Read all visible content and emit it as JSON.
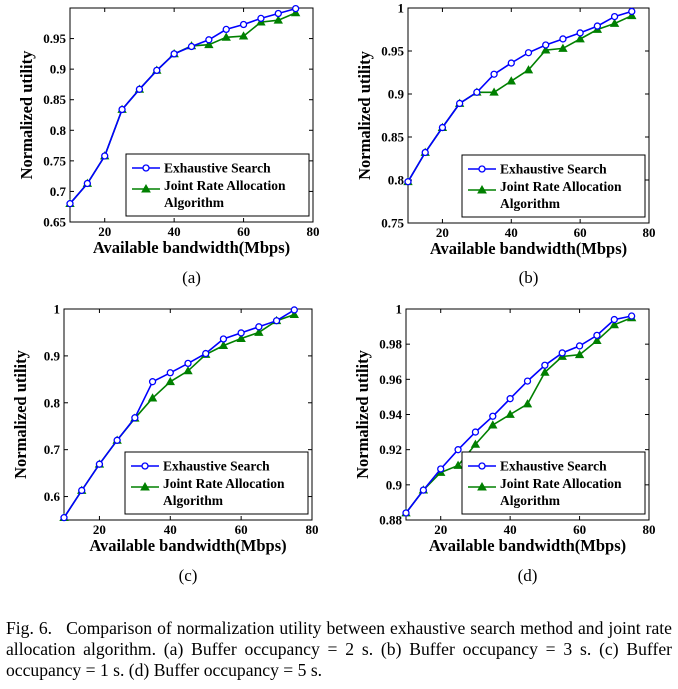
{
  "caption": {
    "label": "Fig. 6.",
    "text": "Comparison of normalization utility between exhaustive search method and joint rate allocation algorithm. (a) Buffer occupancy = 2 s. (b) Buffer occupancy = 3 s. (c) Buffer occupancy = 1 s. (d) Buffer occupancy = 5 s."
  },
  "colors": {
    "exhaustive": "#0000ff",
    "joint": "#008000",
    "axis": "#000000"
  },
  "chart_data": [
    {
      "panel": "(a)",
      "type": "line",
      "xlabel": "Available bandwidth(Mbps)",
      "ylabel": "Normalized utility",
      "xlim": [
        10,
        80
      ],
      "ylim": [
        0.65,
        1.0
      ],
      "xticks": [
        20,
        40,
        60,
        80
      ],
      "yticks": [
        0.65,
        0.7,
        0.75,
        0.8,
        0.85,
        0.9,
        0.95
      ],
      "ytick_labels": [
        "0.65",
        "0.7",
        "0.75",
        "0.8",
        "0.85",
        "0.9",
        "0.95"
      ],
      "legend_position": "lower-right",
      "x": [
        10,
        15,
        20,
        25,
        30,
        35,
        40,
        45,
        50,
        55,
        60,
        65,
        70,
        75
      ],
      "series": [
        {
          "name": "Exhaustive Search",
          "marker": "circle",
          "values": [
            0.68,
            0.713,
            0.758,
            0.834,
            0.867,
            0.898,
            0.925,
            0.937,
            0.948,
            0.965,
            0.973,
            0.983,
            0.991,
            0.999
          ]
        },
        {
          "name": "Joint Rate Allocation Algorithm",
          "marker": "triangle",
          "values": [
            0.68,
            0.713,
            0.758,
            0.834,
            0.867,
            0.898,
            0.925,
            0.938,
            0.94,
            0.952,
            0.954,
            0.977,
            0.98,
            0.992
          ]
        }
      ]
    },
    {
      "panel": "(b)",
      "type": "line",
      "xlabel": "Available bandwidth(Mbps)",
      "ylabel": "Normalized utility",
      "xlim": [
        10,
        80
      ],
      "ylim": [
        0.75,
        1.0
      ],
      "xticks": [
        20,
        40,
        60,
        80
      ],
      "yticks": [
        0.75,
        0.8,
        0.85,
        0.9,
        0.95,
        1.0
      ],
      "ytick_labels": [
        "0.75",
        "0.8",
        "0.85",
        "0.9",
        "0.95",
        "1"
      ],
      "legend_position": "lower-right",
      "x": [
        10,
        15,
        20,
        25,
        30,
        35,
        40,
        45,
        50,
        55,
        60,
        65,
        70,
        75
      ],
      "series": [
        {
          "name": "Exhaustive Search",
          "marker": "circle",
          "values": [
            0.798,
            0.832,
            0.861,
            0.889,
            0.902,
            0.923,
            0.936,
            0.948,
            0.957,
            0.964,
            0.971,
            0.979,
            0.99,
            0.996
          ]
        },
        {
          "name": "Joint Rate Allocation Algorithm",
          "marker": "triangle",
          "values": [
            0.798,
            0.832,
            0.861,
            0.889,
            0.902,
            0.902,
            0.915,
            0.928,
            0.951,
            0.953,
            0.964,
            0.975,
            0.982,
            0.991
          ]
        }
      ]
    },
    {
      "panel": "(c)",
      "type": "line",
      "xlabel": "Available bandwidth(Mbps)",
      "ylabel": "Normalized utility",
      "xlim": [
        10,
        80
      ],
      "ylim": [
        0.55,
        1.0
      ],
      "xticks": [
        20,
        40,
        60,
        80
      ],
      "yticks": [
        0.6,
        0.7,
        0.8,
        0.9,
        1.0
      ],
      "ytick_labels": [
        "0.6",
        "0.7",
        "0.8",
        "0.9",
        "1"
      ],
      "legend_position": "lower-right",
      "x": [
        10,
        15,
        20,
        25,
        30,
        35,
        40,
        45,
        50,
        55,
        60,
        65,
        70,
        75
      ],
      "series": [
        {
          "name": "Exhaustive Search",
          "marker": "circle",
          "values": [
            0.555,
            0.613,
            0.669,
            0.72,
            0.768,
            0.845,
            0.864,
            0.884,
            0.905,
            0.936,
            0.949,
            0.962,
            0.975,
            0.998
          ]
        },
        {
          "name": "Joint Rate Allocation Algorithm",
          "marker": "triangle",
          "values": [
            0.555,
            0.613,
            0.669,
            0.72,
            0.767,
            0.81,
            0.845,
            0.868,
            0.903,
            0.922,
            0.937,
            0.95,
            0.975,
            0.988
          ]
        }
      ]
    },
    {
      "panel": "(d)",
      "type": "line",
      "xlabel": "Available bandwidth(Mbps)",
      "ylabel": "Normalized utility",
      "xlim": [
        10,
        80
      ],
      "ylim": [
        0.88,
        1.0
      ],
      "xticks": [
        20,
        40,
        60,
        80
      ],
      "yticks": [
        0.88,
        0.9,
        0.92,
        0.94,
        0.96,
        0.98,
        1.0
      ],
      "ytick_labels": [
        "0.88",
        "0.9",
        "0.92",
        "0.94",
        "0.96",
        "0.98",
        "1"
      ],
      "legend_position": "lower-right",
      "x": [
        10,
        15,
        20,
        25,
        30,
        35,
        40,
        45,
        50,
        55,
        60,
        65,
        70,
        75
      ],
      "series": [
        {
          "name": "Exhaustive Search",
          "marker": "circle",
          "values": [
            0.884,
            0.897,
            0.909,
            0.92,
            0.93,
            0.939,
            0.949,
            0.959,
            0.968,
            0.975,
            0.979,
            0.985,
            0.994,
            0.996
          ]
        },
        {
          "name": "Joint Rate Allocation Algorithm",
          "marker": "triangle",
          "values": [
            0.884,
            0.897,
            0.907,
            0.911,
            0.923,
            0.934,
            0.94,
            0.946,
            0.964,
            0.973,
            0.974,
            0.982,
            0.991,
            0.995
          ]
        }
      ]
    }
  ]
}
